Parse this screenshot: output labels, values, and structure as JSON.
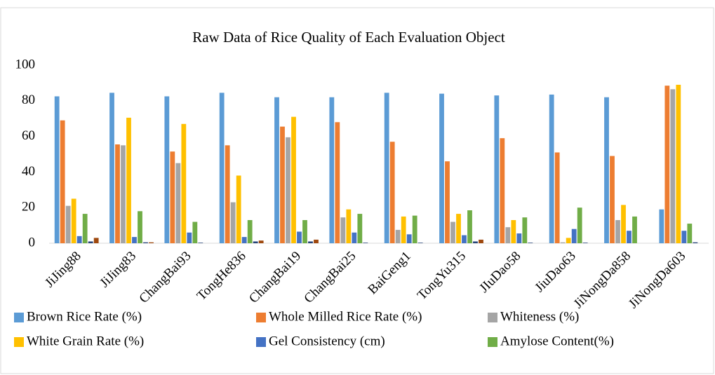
{
  "chart_data": {
    "type": "bar",
    "title": "Raw Data of Rice Quality of Each Evaluation Object",
    "categories": [
      "JiJing88",
      "JiJing83",
      "ChangBai93",
      "TongHe836",
      "ChangBai19",
      "ChangBai25",
      "BaiGeng1",
      "TongYu315",
      "JIuDao58",
      "JiuDao63",
      "JiNongDa858",
      "JiNongDa603"
    ],
    "series": [
      {
        "name": "Brown Rice Rate (%)",
        "color": "#5b9bd5",
        "values": [
          82.5,
          84.5,
          82.5,
          84.5,
          82,
          82,
          84.5,
          84,
          83,
          83.5,
          82,
          19
        ]
      },
      {
        "name": "Whole Milled Rice Rate (%)",
        "color": "#ed7d31",
        "values": [
          69,
          55.5,
          51.5,
          55,
          65.5,
          68,
          57,
          46,
          59,
          51,
          49,
          88.5
        ]
      },
      {
        "name": "Whiteness (%)",
        "color": "#a5a5a5",
        "values": [
          21,
          55,
          45,
          23,
          59.5,
          14.5,
          7.5,
          12,
          9,
          0.5,
          13,
          86.5
        ]
      },
      {
        "name": "White Grain Rate (%)",
        "color": "#ffc000",
        "values": [
          25,
          70.5,
          67,
          38,
          71,
          19,
          15,
          16.5,
          13,
          3,
          21.5,
          89
        ]
      },
      {
        "name": "Gel Consistency (cm)",
        "color": "#4472c4",
        "values": [
          4,
          3.5,
          6,
          3.5,
          6.5,
          6,
          5,
          4.5,
          5.5,
          8,
          7,
          7
        ]
      },
      {
        "name": "Amylose Content(%)",
        "color": "#70ad47",
        "values": [
          16.5,
          18,
          12,
          13,
          13,
          16.5,
          15.5,
          18.5,
          14.5,
          20,
          15,
          11
        ]
      },
      {
        "color": "#264478",
        "values": [
          1,
          0.5,
          0.3,
          1,
          1,
          0.3,
          0.3,
          1,
          0.3,
          0.3,
          0,
          0.5
        ]
      },
      {
        "color": "#9e480e",
        "values": [
          3,
          0.5,
          0,
          1.5,
          2,
          0,
          0,
          2,
          0,
          0,
          0,
          0
        ]
      }
    ],
    "ylim": [
      0,
      100
    ],
    "yticks": [
      0,
      20,
      40,
      60,
      80,
      100
    ],
    "grid": false
  }
}
